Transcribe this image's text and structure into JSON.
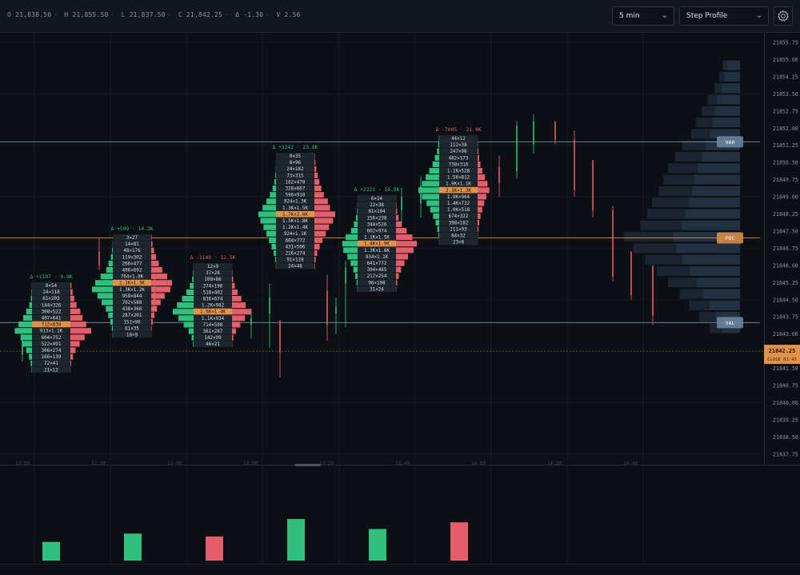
{
  "header": {
    "ohlc": [
      {
        "label": "O",
        "value": "21,838.50"
      },
      {
        "label": "H",
        "value": "21,855.50"
      },
      {
        "label": "L",
        "value": "21,837.50"
      },
      {
        "label": "C",
        "value": "21,842.25"
      },
      {
        "label": "Δ",
        "value": "-1.30"
      },
      {
        "label": "V",
        "value": "2.56"
      }
    ],
    "interval": "5 min",
    "profile_mode": "Step Profile",
    "settings_icon": "gear-icon"
  },
  "colors": {
    "background": "#0c0f13",
    "buy": "#2fbf7f",
    "sell": "#e35d6a",
    "poc": "#e0924a",
    "va_line": "#7f95a8",
    "cell": "#1d262f"
  },
  "price_axis": {
    "labels": [
      "21855.75",
      "21855.00",
      "21854.25",
      "21853.50",
      "21852.75",
      "21852.00",
      "21851.25",
      "21850.50",
      "21849.75",
      "21849.00",
      "21848.25",
      "21847.50",
      "21846.75",
      "21846.00",
      "21845.25",
      "21844.50",
      "21843.75",
      "21843.00",
      "21842.25",
      "21841.50",
      "21840.75",
      "21840.00",
      "21839.25",
      "21838.50",
      "21837.75"
    ],
    "last_price": "21842.25",
    "close_label": "CLOSE 01:43"
  },
  "time_axis": [
    "12:00",
    "12:20",
    "12:40",
    "13:00",
    "13:20",
    "13:40",
    "14:00",
    "14:20",
    "14:40"
  ],
  "levels": {
    "vah": {
      "label": "VAH",
      "price": 21851.4
    },
    "poc": {
      "label": "POC",
      "price": 21847.2
    },
    "val": {
      "label": "VAL",
      "price": 21843.5
    },
    "last": {
      "price": 21842.25
    }
  },
  "bars": [
    {
      "delta_text": "Δ +1107 · 9.9K",
      "delta_sign": "pos",
      "poc_index": 6,
      "rows": [
        "8×54",
        "24×118",
        "61×203",
        "144×326",
        "308×522",
        "467×641",
        "712×838",
        "913×1.1K",
        "604×752",
        "522×491",
        "306×274",
        "166×139",
        "72×41",
        "21×12"
      ]
    },
    {
      "delta_text": "Δ +599 · 14.2K",
      "delta_sign": "pos",
      "poc_index": 7,
      "rows": [
        "3×27",
        "14×81",
        "48×176",
        "119×302",
        "266×477",
        "406×692",
        "764×1.0K",
        "1.1K×1.3K",
        "1.3K×1.2K",
        "958×844",
        "702×588",
        "438×366",
        "287×201",
        "151×96",
        "61×35",
        "18×9"
      ]
    },
    {
      "delta_text": "Δ -1140 · 12.5K",
      "delta_sign": "neg",
      "poc_index": 7,
      "rows": [
        "12×9",
        "37×28",
        "108×86",
        "274×196",
        "518×402",
        "836×674",
        "1.2K×982",
        "1.5K×1.4K",
        "1.1K×934",
        "714×598",
        "361×287",
        "142×99",
        "46×21"
      ]
    },
    {
      "delta_text": "Δ +3342 · 23.8K",
      "delta_sign": "pos",
      "poc_index": 9,
      "rows": [
        "0×35",
        "8×96",
        "24×182",
        "73×315",
        "162×478",
        "328×667",
        "596×910",
        "924×1.3K",
        "1.3K×1.5K",
        "1.7K×2.0K",
        "1.5K×1.8K",
        "1.2K×1.4K",
        "924×1.1K",
        "684×772",
        "431×506",
        "226×274",
        "91×128",
        "24×48"
      ]
    },
    {
      "delta_text": "Δ +2221 · 16.9K",
      "delta_sign": "pos",
      "poc_index": 7,
      "rows": [
        "6×14",
        "22×38",
        "61×104",
        "156×238",
        "344×526",
        "602×974",
        "1.1K×1.5K",
        "1.4K×1.9K",
        "1.3K×1.6K",
        "934×1.1K",
        "641×772",
        "394×465",
        "217×254",
        "96×108",
        "31×24"
      ]
    },
    {
      "delta_text": "Δ -7005 · 21.4K",
      "delta_sign": "neg",
      "poc_index": 8,
      "rows": [
        "44×12",
        "112×38",
        "247×96",
        "482×173",
        "738×316",
        "1.1K×528",
        "1.5K×812",
        "1.9K×1.1K",
        "2.3K×1.3K",
        "1.9K×964",
        "1.4K×732",
        "1.0K×518",
        "674×322",
        "398×182",
        "211×93",
        "84×32",
        "23×8"
      ]
    }
  ],
  "candles": [
    {
      "x": 28,
      "o": 21842.1,
      "h": 21843.2,
      "l": 21841.8,
      "c": 21842.8
    },
    {
      "x": 67,
      "o": 21843.6,
      "h": 21844.4,
      "l": 21843.0,
      "c": 21843.9
    },
    {
      "x": 124,
      "o": 21846.6,
      "h": 21847.2,
      "l": 21845.8,
      "c": 21846.0
    },
    {
      "x": 193,
      "o": 21844.5,
      "h": 21845.4,
      "l": 21844.1,
      "c": 21844.8
    },
    {
      "x": 314,
      "o": 21843.4,
      "h": 21844.1,
      "l": 21842.8,
      "c": 21843.7
    },
    {
      "x": 337,
      "o": 21843.9,
      "h": 21845.2,
      "l": 21842.4,
      "c": 21844.6
    },
    {
      "x": 350,
      "o": 21843.6,
      "h": 21843.6,
      "l": 21841.1,
      "c": 21842.2
    },
    {
      "x": 409,
      "o": 21844.9,
      "h": 21845.6,
      "l": 21842.7,
      "c": 21843.4
    },
    {
      "x": 420,
      "o": 21843.9,
      "h": 21844.6,
      "l": 21843.0,
      "c": 21844.2
    },
    {
      "x": 432,
      "o": 21845.2,
      "h": 21846.2,
      "l": 21843.3,
      "c": 21845.9
    },
    {
      "x": 502,
      "o": 21848.4,
      "h": 21849.4,
      "l": 21847.8,
      "c": 21849.0
    },
    {
      "x": 526,
      "o": 21848.7,
      "h": 21849.9,
      "l": 21848.1,
      "c": 21849.5
    },
    {
      "x": 598,
      "o": 21850.0,
      "h": 21850.8,
      "l": 21849.7,
      "c": 21850.2
    },
    {
      "x": 624,
      "o": 21850.3,
      "h": 21850.8,
      "l": 21849.0,
      "c": 21849.6
    },
    {
      "x": 646,
      "o": 21850.1,
      "h": 21852.3,
      "l": 21849.8,
      "c": 21852.1
    },
    {
      "x": 667,
      "o": 21851.3,
      "h": 21852.6,
      "l": 21850.9,
      "c": 21852.3
    },
    {
      "x": 694,
      "o": 21852.3,
      "h": 21852.3,
      "l": 21851.3,
      "c": 21851.5
    },
    {
      "x": 718,
      "o": 21851.5,
      "h": 21851.9,
      "l": 21849.0,
      "c": 21849.3
    },
    {
      "x": 741,
      "o": 21850.6,
      "h": 21850.6,
      "l": 21848.1,
      "c": 21848.4
    },
    {
      "x": 766,
      "o": 21848.4,
      "h": 21848.6,
      "l": 21845.3,
      "c": 21845.5
    },
    {
      "x": 789,
      "o": 21846.6,
      "h": 21846.6,
      "l": 21844.5,
      "c": 21844.7
    },
    {
      "x": 816,
      "o": 21846.0,
      "h": 21846.0,
      "l": 21843.4,
      "c": 21843.8
    }
  ],
  "volume_profile": [
    {
      "price": 21854.75,
      "buy": 0.15,
      "sell": 0.17
    },
    {
      "price": 21854.25,
      "buy": 0.18,
      "sell": 0.2
    },
    {
      "price": 21853.75,
      "buy": 0.22,
      "sell": 0.24
    },
    {
      "price": 21853.25,
      "buy": 0.28,
      "sell": 0.3
    },
    {
      "price": 21852.75,
      "buy": 0.33,
      "sell": 0.33
    },
    {
      "price": 21852.25,
      "buy": 0.38,
      "sell": 0.36
    },
    {
      "price": 21851.75,
      "buy": 0.42,
      "sell": 0.4
    },
    {
      "price": 21851.25,
      "buy": 0.5,
      "sell": 0.45
    },
    {
      "price": 21850.75,
      "buy": 0.56,
      "sell": 0.5
    },
    {
      "price": 21850.25,
      "buy": 0.62,
      "sell": 0.55
    },
    {
      "price": 21849.75,
      "buy": 0.66,
      "sell": 0.6
    },
    {
      "price": 21849.25,
      "buy": 0.7,
      "sell": 0.63
    },
    {
      "price": 21848.75,
      "buy": 0.76,
      "sell": 0.68
    },
    {
      "price": 21848.25,
      "buy": 0.8,
      "sell": 0.72
    },
    {
      "price": 21847.75,
      "buy": 0.86,
      "sell": 0.76
    },
    {
      "price": 21847.25,
      "buy": 1.0,
      "sell": 0.88
    },
    {
      "price": 21846.75,
      "buy": 0.92,
      "sell": 0.84
    },
    {
      "price": 21846.25,
      "buy": 0.82,
      "sell": 0.76
    },
    {
      "price": 21845.75,
      "buy": 0.72,
      "sell": 0.66
    },
    {
      "price": 21845.25,
      "buy": 0.62,
      "sell": 0.57
    },
    {
      "price": 21844.75,
      "buy": 0.52,
      "sell": 0.48
    },
    {
      "price": 21844.25,
      "buy": 0.44,
      "sell": 0.4
    },
    {
      "price": 21843.75,
      "buy": 0.35,
      "sell": 0.32
    },
    {
      "price": 21843.25,
      "buy": 0.26,
      "sell": 0.24
    }
  ],
  "volume_bars": [
    {
      "value": 0.45,
      "dir": "up"
    },
    {
      "value": 0.65,
      "dir": "up"
    },
    {
      "value": 0.58,
      "dir": "down"
    },
    {
      "value": 1.0,
      "dir": "up"
    },
    {
      "value": 0.76,
      "dir": "up"
    },
    {
      "value": 0.92,
      "dir": "down"
    }
  ]
}
